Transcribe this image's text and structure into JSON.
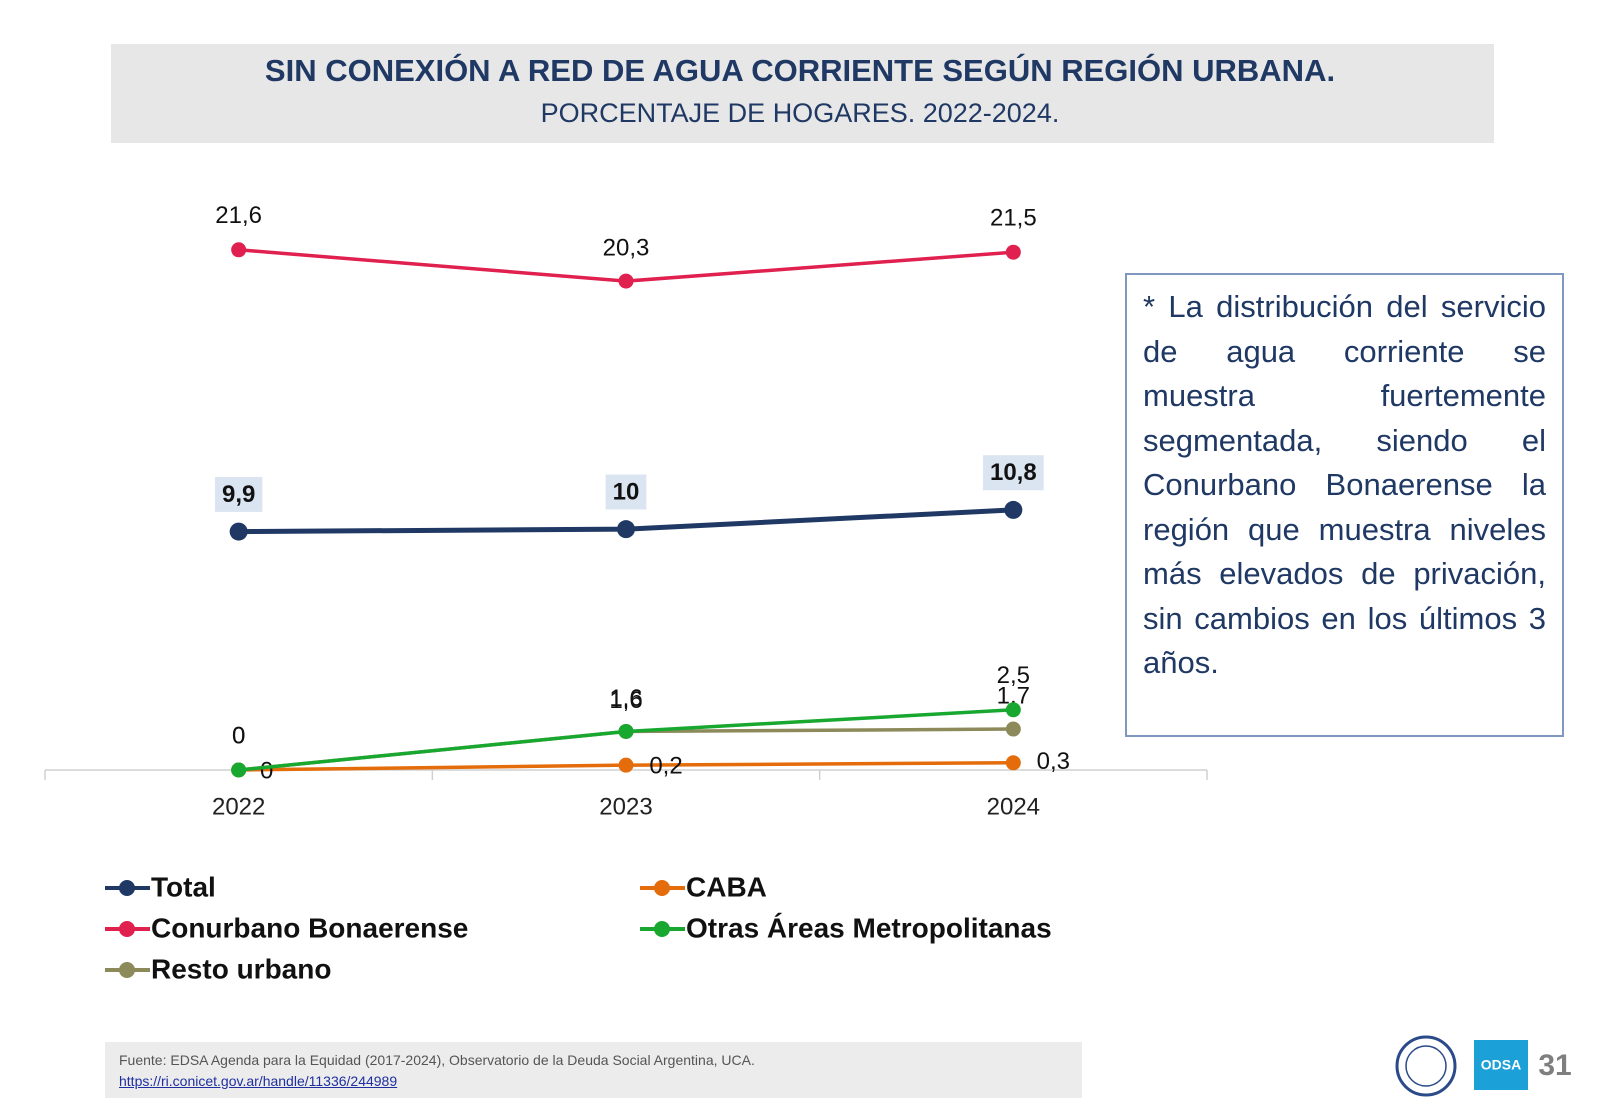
{
  "chart_data": {
    "type": "line",
    "title": "SIN CONEXIÓN A RED DE AGUA CORRIENTE SEGÚN REGIÓN URBANA.",
    "subtitle": "PORCENTAJE DE HOGARES. 2022-2024.",
    "categories": [
      "2022",
      "2023",
      "2024"
    ],
    "ylim": [
      0,
      24
    ],
    "series": [
      {
        "name": "Total",
        "color": "#203864",
        "values": [
          9.9,
          10,
          10.8
        ],
        "value_labels": [
          "9,9",
          "10",
          "10,8"
        ],
        "highlight": true
      },
      {
        "name": "CABA",
        "color": "#e46c0a",
        "values": [
          0,
          0.2,
          0.3
        ],
        "value_labels": [
          "0",
          "0,2",
          "0,3"
        ]
      },
      {
        "name": "Conurbano Bonaerense",
        "color": "#e0204f",
        "values": [
          21.6,
          20.3,
          21.5
        ],
        "value_labels": [
          "21,6",
          "20,3",
          "21,5"
        ]
      },
      {
        "name": "Otras Áreas Metropolitanas",
        "color": "#18a830",
        "values": [
          0,
          1.6,
          2.5
        ],
        "value_labels": [
          "0",
          "1,6",
          "2,5"
        ]
      },
      {
        "name": "Resto urbano",
        "color": "#8c8a5a",
        "values": [
          0,
          1.6,
          1.7
        ],
        "value_labels": [
          "0",
          "1,6",
          "1,7"
        ]
      }
    ]
  },
  "note": "* La distribución del servicio de agua corriente se muestra fuertemente segmentada, siendo el Conurbano Bonaerense la región que muestra niveles más elevados de privación, sin cambios en los últimos 3 años.",
  "source": "Fuente: EDSA Agenda para la Equidad (2017-2024), Observatorio de la Deuda Social Argentina, UCA.",
  "link": "https://ri.conicet.gov.ar/handle/11336/244989",
  "logo": "ODSA",
  "page_number": 31
}
